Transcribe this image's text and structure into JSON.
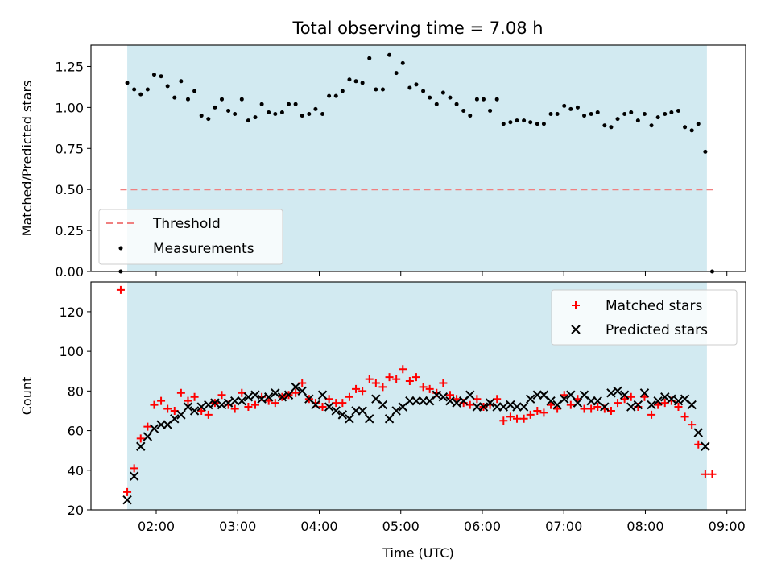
{
  "figure": {
    "title": "Total observing time = 7.08 h"
  },
  "colors": {
    "band": "#add8e6",
    "threshold": "#f08080",
    "matched": "#ff0000",
    "predicted": "#000000",
    "measurement": "#000000"
  },
  "chart_data": [
    {
      "type": "scatter",
      "ylabel": "Matched/Predicted stars",
      "xlim": [
        1.2,
        9.23
      ],
      "ylim": [
        0.0,
        1.38
      ],
      "yticks": [
        0.0,
        0.25,
        0.5,
        0.75,
        1.0,
        1.25
      ],
      "ytick_labels": [
        "0.00",
        "0.25",
        "0.50",
        "0.75",
        "1.00",
        "1.25"
      ],
      "band": [
        1.645,
        8.755
      ],
      "legend_position": "lower-left",
      "threshold": {
        "name": "Threshold",
        "y": 0.5,
        "x": [
          1.56,
          8.86
        ]
      },
      "series": [
        {
          "name": "Measurements",
          "x": [
            1.565,
            1.645,
            1.73,
            1.81,
            1.895,
            1.975,
            2.06,
            2.14,
            2.225,
            2.305,
            2.39,
            2.47,
            2.555,
            2.64,
            2.72,
            2.805,
            2.885,
            2.965,
            3.05,
            3.13,
            3.215,
            3.295,
            3.38,
            3.46,
            3.545,
            3.625,
            3.71,
            3.79,
            3.875,
            3.955,
            4.04,
            4.12,
            4.205,
            4.285,
            4.37,
            4.45,
            4.53,
            4.615,
            4.695,
            4.78,
            4.86,
            4.945,
            5.025,
            5.11,
            5.19,
            5.275,
            5.355,
            5.44,
            5.52,
            5.605,
            5.685,
            5.77,
            5.85,
            5.935,
            6.015,
            6.095,
            6.18,
            6.26,
            6.345,
            6.425,
            6.51,
            6.59,
            6.675,
            6.755,
            6.84,
            6.92,
            7.005,
            7.085,
            7.17,
            7.25,
            7.335,
            7.415,
            7.5,
            7.58,
            7.66,
            7.745,
            7.825,
            7.91,
            7.99,
            8.075,
            8.155,
            8.24,
            8.32,
            8.405,
            8.485,
            8.57,
            8.65,
            8.735,
            8.82
          ],
          "y": [
            0.0,
            1.15,
            1.11,
            1.08,
            1.11,
            1.2,
            1.19,
            1.13,
            1.06,
            1.16,
            1.05,
            1.1,
            0.95,
            0.93,
            1.0,
            1.05,
            0.98,
            0.96,
            1.05,
            0.92,
            0.94,
            1.02,
            0.97,
            0.96,
            0.97,
            1.02,
            1.02,
            0.95,
            0.96,
            0.99,
            0.96,
            1.07,
            1.07,
            1.1,
            1.17,
            1.16,
            1.15,
            1.3,
            1.11,
            1.11,
            1.32,
            1.21,
            1.27,
            1.12,
            1.14,
            1.1,
            1.06,
            1.02,
            1.09,
            1.06,
            1.02,
            0.98,
            0.95,
            1.05,
            1.05,
            0.98,
            1.05,
            0.9,
            0.91,
            0.92,
            0.92,
            0.91,
            0.9,
            0.9,
            0.96,
            0.96,
            1.01,
            0.99,
            1.0,
            0.95,
            0.96,
            0.97,
            0.89,
            0.88,
            0.93,
            0.96,
            0.97,
            0.92,
            0.96,
            0.89,
            0.94,
            0.96,
            0.97,
            0.98,
            0.88,
            0.86,
            0.9,
            0.73,
            0.0
          ]
        }
      ]
    },
    {
      "type": "scatter",
      "xlabel": "Time (UTC)",
      "ylabel": "Count",
      "xlim": [
        1.2,
        9.23
      ],
      "ylim": [
        20,
        135
      ],
      "xticks": [
        2,
        3,
        4,
        5,
        6,
        7,
        8,
        9
      ],
      "xtick_labels": [
        "02:00",
        "03:00",
        "04:00",
        "05:00",
        "06:00",
        "07:00",
        "08:00",
        "09:00"
      ],
      "yticks": [
        20,
        40,
        60,
        80,
        100,
        120
      ],
      "ytick_labels": [
        "20",
        "40",
        "60",
        "80",
        "100",
        "120"
      ],
      "band": [
        1.645,
        8.755
      ],
      "legend_position": "upper-right",
      "series": [
        {
          "name": "Matched stars",
          "marker": "plus",
          "x": [
            1.565,
            1.645,
            1.73,
            1.81,
            1.895,
            1.975,
            2.06,
            2.14,
            2.225,
            2.305,
            2.39,
            2.47,
            2.555,
            2.64,
            2.72,
            2.805,
            2.885,
            2.965,
            3.05,
            3.13,
            3.215,
            3.295,
            3.38,
            3.46,
            3.545,
            3.625,
            3.71,
            3.79,
            3.875,
            3.955,
            4.04,
            4.12,
            4.205,
            4.285,
            4.37,
            4.45,
            4.53,
            4.615,
            4.695,
            4.78,
            4.86,
            4.945,
            5.025,
            5.11,
            5.19,
            5.275,
            5.355,
            5.44,
            5.52,
            5.605,
            5.685,
            5.77,
            5.85,
            5.935,
            6.015,
            6.095,
            6.18,
            6.26,
            6.345,
            6.425,
            6.51,
            6.59,
            6.675,
            6.755,
            6.84,
            6.92,
            7.005,
            7.085,
            7.17,
            7.25,
            7.335,
            7.415,
            7.5,
            7.58,
            7.66,
            7.745,
            7.825,
            7.91,
            7.99,
            8.075,
            8.155,
            8.24,
            8.32,
            8.405,
            8.485,
            8.57,
            8.65,
            8.735,
            8.82
          ],
          "y": [
            131,
            29,
            41,
            56,
            62,
            73,
            75,
            71,
            70,
            79,
            75,
            77,
            70,
            68,
            74,
            78,
            73,
            71,
            79,
            72,
            73,
            77,
            75,
            74,
            77,
            78,
            79,
            84,
            76,
            74,
            72,
            76,
            74,
            74,
            77,
            81,
            80,
            86,
            84,
            82,
            87,
            86,
            91,
            85,
            87,
            82,
            81,
            79,
            84,
            78,
            76,
            74,
            73,
            76,
            72,
            73,
            76,
            65,
            67,
            66,
            66,
            68,
            70,
            69,
            73,
            71,
            78,
            73,
            76,
            71,
            71,
            72,
            71,
            70,
            74,
            76,
            77,
            72,
            77,
            68,
            73,
            74,
            75,
            72,
            67,
            63,
            53,
            38,
            38
          ]
        },
        {
          "name": "Predicted stars",
          "marker": "x",
          "x": [
            1.645,
            1.73,
            1.81,
            1.895,
            1.975,
            2.06,
            2.14,
            2.225,
            2.305,
            2.39,
            2.47,
            2.555,
            2.64,
            2.72,
            2.805,
            2.885,
            2.965,
            3.05,
            3.13,
            3.215,
            3.295,
            3.38,
            3.46,
            3.545,
            3.625,
            3.71,
            3.79,
            3.875,
            3.955,
            4.04,
            4.12,
            4.205,
            4.285,
            4.37,
            4.45,
            4.53,
            4.615,
            4.695,
            4.78,
            4.86,
            4.945,
            5.025,
            5.11,
            5.19,
            5.275,
            5.355,
            5.44,
            5.52,
            5.605,
            5.685,
            5.77,
            5.85,
            5.935,
            6.015,
            6.095,
            6.18,
            6.26,
            6.345,
            6.425,
            6.51,
            6.59,
            6.675,
            6.755,
            6.84,
            6.92,
            7.005,
            7.085,
            7.17,
            7.25,
            7.335,
            7.415,
            7.5,
            7.58,
            7.66,
            7.745,
            7.825,
            7.91,
            7.99,
            8.075,
            8.155,
            8.24,
            8.32,
            8.405,
            8.485,
            8.57,
            8.65,
            8.735
          ],
          "y": [
            25,
            37,
            52,
            57,
            61,
            63,
            63,
            66,
            68,
            72,
            70,
            72,
            73,
            74,
            73,
            74,
            75,
            75,
            77,
            78,
            76,
            77,
            79,
            77,
            78,
            82,
            80,
            76,
            73,
            78,
            72,
            70,
            68,
            66,
            70,
            70,
            66,
            76,
            73,
            66,
            70,
            72,
            75,
            75,
            75,
            75,
            78,
            77,
            75,
            74,
            75,
            78,
            72,
            72,
            74,
            72,
            72,
            73,
            72,
            72,
            76,
            78,
            78,
            75,
            73,
            76,
            78,
            74,
            78,
            75,
            75,
            72,
            79,
            80,
            78,
            72,
            73,
            79,
            73,
            75,
            77,
            76,
            75,
            76,
            73,
            59,
            52
          ]
        }
      ]
    }
  ]
}
